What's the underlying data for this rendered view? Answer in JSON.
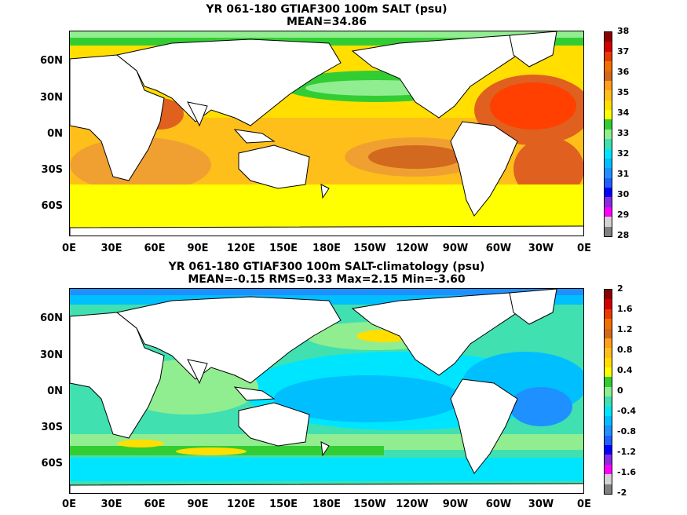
{
  "panels": [
    {
      "title_line1": "YR 061-180 GTIAF300 100m SALT (psu)",
      "title_line2": "MEAN=34.86",
      "colorbar": {
        "labels": [
          "38",
          "37",
          "36",
          "35",
          "34",
          "33",
          "32",
          "31",
          "30",
          "29",
          "28"
        ],
        "colors": [
          "#8b0000",
          "#d40000",
          "#e63c00",
          "#f07000",
          "#d2691e",
          "#ff9f1a",
          "#ffbf1a",
          "#ffde00",
          "#ffff00",
          "#32cd32",
          "#90ee90",
          "#40e0b0",
          "#00e5ff",
          "#00bfff",
          "#1e90ff",
          "#2060ff",
          "#0000ff",
          "#8a2be2",
          "#ff00ff",
          "#d3d3d3",
          "#808080"
        ]
      }
    },
    {
      "title_line1": "YR 061-180 GTIAF300 100m SALT-climatology (psu)",
      "title_line2": "MEAN=-0.15   RMS=0.33   Max=2.15   Min=-3.60",
      "colorbar": {
        "labels": [
          "2",
          "1.6",
          "1.2",
          "0.8",
          "0.4",
          "0",
          "-0.4",
          "-0.8",
          "-1.2",
          "-1.6",
          "-2"
        ],
        "colors": [
          "#8b0000",
          "#d40000",
          "#e63c00",
          "#f07000",
          "#d2691e",
          "#ff9f1a",
          "#ffbf1a",
          "#ffde00",
          "#ffff00",
          "#32cd32",
          "#90ee90",
          "#40e0b0",
          "#00e5ff",
          "#00bfff",
          "#1e90ff",
          "#2060ff",
          "#0000ff",
          "#8a2be2",
          "#ff00ff",
          "#d3d3d3",
          "#808080"
        ]
      }
    }
  ],
  "lat_labels": [
    "60N",
    "30N",
    "0N",
    "30S",
    "60S"
  ],
  "lon_labels": [
    "0E",
    "30E",
    "60E",
    "90E",
    "120E",
    "150E",
    "180E",
    "150W",
    "120W",
    "90W",
    "60W",
    "30W",
    "0E"
  ],
  "palette": {
    "land": "#ffffff",
    "coast": "#000000"
  }
}
